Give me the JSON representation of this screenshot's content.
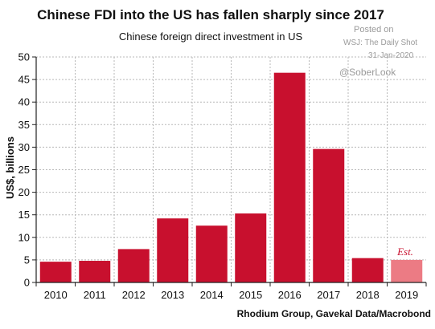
{
  "chart_data": {
    "type": "bar",
    "title": "Chinese FDI into the US has fallen sharply since 2017",
    "subtitle": "Chinese foreign direct investment in US",
    "ylabel": "US$, billions",
    "xlabel": "",
    "categories": [
      "2010",
      "2011",
      "2012",
      "2013",
      "2014",
      "2015",
      "2016",
      "2017",
      "2018",
      "2019"
    ],
    "values": [
      4.6,
      4.8,
      7.4,
      14.2,
      12.6,
      15.3,
      46.5,
      29.6,
      5.4,
      5.0
    ],
    "estimated": [
      false,
      false,
      false,
      false,
      false,
      false,
      false,
      false,
      false,
      true
    ],
    "estimate_label": "Est.",
    "ylim": [
      0,
      50
    ],
    "yticks": [
      0,
      5,
      10,
      15,
      20,
      25,
      30,
      35,
      40,
      45,
      50
    ],
    "grid": true,
    "source": "Rhodium Group, Gavekal Data/Macrobond",
    "colors": {
      "bar": "#c8102e",
      "bar_estimate": "#ec7b84",
      "grid": "#b8b8b8"
    }
  },
  "watermark": {
    "posted": "Posted on",
    "outlet": "WSJ: The Daily Shot",
    "date": "31-Jan-2020",
    "handle": "@SoberLook"
  }
}
